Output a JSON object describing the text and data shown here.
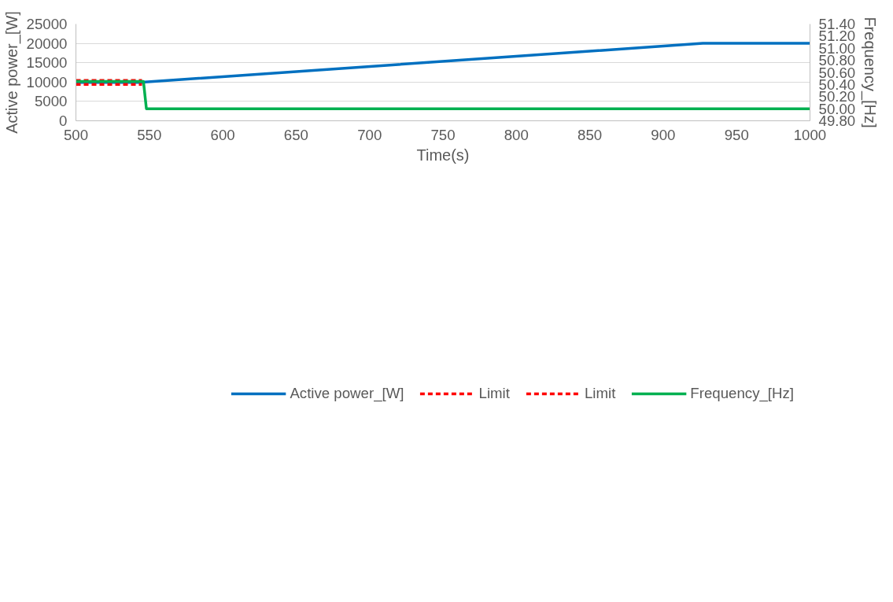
{
  "chart_data": {
    "type": "line",
    "xlabel": "Time(s)",
    "ylabel": "Active power_[W]",
    "y2label": "Frequency_[Hz]",
    "xlim": [
      500,
      1000
    ],
    "xticks": [
      500,
      550,
      600,
      650,
      700,
      750,
      800,
      850,
      900,
      950,
      1000
    ],
    "ylim": [
      0,
      25000
    ],
    "yticks": [
      0,
      5000,
      10000,
      15000,
      20000,
      25000
    ],
    "y2lim": [
      49.8,
      51.4
    ],
    "y2ticks": [
      {
        "value": 49.8,
        "label": "49.80"
      },
      {
        "value": 50.0,
        "label": "50.00"
      },
      {
        "value": 50.2,
        "label": "50.20"
      },
      {
        "value": 50.4,
        "label": "50.40"
      },
      {
        "value": 50.6,
        "label": "50.60"
      },
      {
        "value": 50.8,
        "label": "50.80"
      },
      {
        "value": 51.0,
        "label": "51.00"
      },
      {
        "value": 51.2,
        "label": "51.20"
      },
      {
        "value": 51.4,
        "label": "51.40"
      }
    ],
    "grid": "y",
    "legend": "bottom",
    "marker": "none",
    "series": [
      {
        "name": "Active power_[W]",
        "color": "#0070c0",
        "line_style": "solid",
        "x": [
          500,
          546,
          547,
          927,
          1000
        ],
        "values": [
          9900,
          9900,
          10000,
          20000,
          20000
        ]
      },
      {
        "name": "Limit",
        "color": "#ff0000",
        "line_style": "dashed",
        "x": [
          500,
          545
        ],
        "values": [
          10400,
          10400
        ]
      },
      {
        "name": "Limit",
        "color": "#ff0000",
        "line_style": "dashed",
        "x": [
          500,
          545
        ],
        "values": [
          9400,
          9400
        ]
      },
      {
        "name": "Frequency_[Hz]",
        "color": "#00b050",
        "line_style": "solid",
        "axis": "y2",
        "x": [
          500,
          546,
          548,
          1000
        ],
        "values": [
          50.45,
          50.45,
          50.0,
          50.0
        ]
      }
    ]
  }
}
